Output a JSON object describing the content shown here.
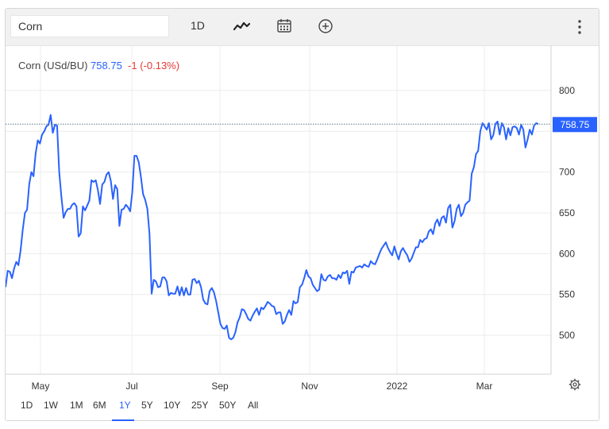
{
  "toolbar": {
    "search_value": "Corn",
    "interval_label": "1D",
    "icons": [
      "line-chart-icon",
      "calendar-icon",
      "add-circle-icon",
      "more-vertical-icon"
    ]
  },
  "legend": {
    "name": "Corn (USd/BU)",
    "price": "758.75",
    "change": "-1 (-0.13%)"
  },
  "price_tag": "758.75",
  "range": {
    "items": [
      "1D",
      "1W",
      "1M",
      "6M",
      "1Y",
      "5Y",
      "10Y",
      "25Y",
      "50Y",
      "All"
    ],
    "active": "1Y"
  },
  "colors": {
    "line": "#2962ff",
    "price_tag_bg": "#2962ff",
    "change": "#e53935",
    "grid": "#ececec"
  },
  "chart_data": {
    "type": "line",
    "series": [
      {
        "values": [
          559,
          579,
          578,
          570,
          582,
          590,
          586,
          604,
          629,
          650,
          654,
          685,
          700,
          695,
          723,
          739,
          735,
          746,
          750,
          756,
          758,
          770,
          748,
          758,
          757,
          700,
          670,
          644,
          651,
          655,
          655,
          660,
          662,
          658,
          621,
          625,
          658,
          653,
          659,
          665,
          690,
          688,
          690,
          678,
          661,
          685,
          688,
          697,
          700,
          689,
          667,
          684,
          679,
          634,
          654,
          655,
          660,
          657,
          652,
          675,
          720,
          720,
          712,
          694,
          673,
          666,
          655,
          624,
          551,
          568,
          566,
          559,
          560,
          571,
          571,
          566,
          549,
          552,
          551,
          551,
          560,
          549,
          559,
          549,
          558,
          550,
          550,
          568,
          569,
          564,
          567,
          559,
          544,
          539,
          538,
          554,
          558,
          553,
          542,
          528,
          514,
          509,
          508,
          512,
          497,
          495,
          497,
          504,
          516,
          522,
          532,
          531,
          526,
          520,
          518,
          524,
          529,
          533,
          525,
          534,
          532,
          536,
          541,
          539,
          536,
          535,
          526,
          528,
          528,
          514,
          517,
          525,
          531,
          525,
          542,
          539,
          541,
          559,
          562,
          570,
          580,
          572,
          570,
          562,
          558,
          554,
          556,
          575,
          568,
          567,
          572,
          574,
          570,
          570,
          568,
          574,
          570,
          577,
          576,
          579,
          563,
          578,
          577,
          583,
          584,
          585,
          583,
          587,
          585,
          584,
          591,
          588,
          587,
          593,
          600,
          606,
          610,
          614,
          607,
          602,
          598,
          609,
          600,
          593,
          603,
          607,
          602,
          598,
          590,
          594,
          601,
          608,
          608,
          617,
          614,
          618,
          619,
          627,
          630,
          624,
          637,
          642,
          634,
          644,
          646,
          638,
          656,
          660,
          632,
          640,
          655,
          660,
          646,
          650,
          660,
          663,
          665,
          698,
          706,
          722,
          726,
          750,
          760,
          756,
          752,
          760,
          740,
          745,
          759,
          762,
          746,
          760,
          755,
          740,
          754,
          745,
          755,
          756,
          754,
          746,
          758,
          752,
          730,
          740,
          752,
          746,
          757,
          760,
          758.75
        ]
      }
    ],
    "x_axis_labels": [
      "May",
      "Jul",
      "Sep",
      "Nov",
      "2022",
      "Mar"
    ],
    "y_ticks": [
      500,
      550,
      600,
      650,
      700,
      750,
      800
    ],
    "y_tick_labels": [
      "500",
      "550",
      "600",
      "650",
      "700",
      "",
      "800"
    ],
    "ylim": [
      452.4,
      855.4
    ],
    "last_value": 758.75,
    "grid": true
  }
}
